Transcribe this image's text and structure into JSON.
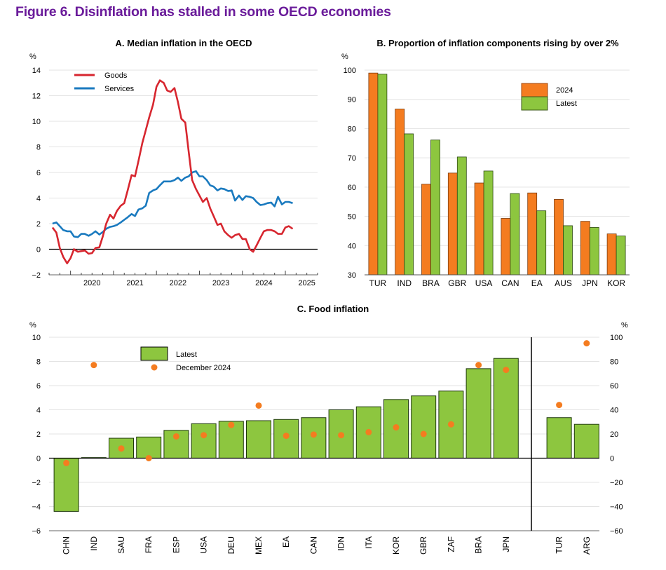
{
  "figure": {
    "title": "Figure 6. Disinflation has stalled in some OECD economies",
    "title_color": "#6a1b9a"
  },
  "chart_data": [
    {
      "id": "A",
      "type": "line",
      "title": "A. Median inflation in the OECD",
      "ylabel": "%",
      "xlabel": "",
      "ylim": [
        -2,
        14
      ],
      "yticks": [
        -2,
        0,
        2,
        4,
        6,
        8,
        10,
        12,
        14
      ],
      "xlim": [
        2019.5,
        2025.75
      ],
      "xticks": [
        "2020",
        "2021",
        "2022",
        "2023",
        "2024",
        "2025"
      ],
      "grid": true,
      "legend": "top-left",
      "series": [
        {
          "name": "Goods",
          "color": "#d7262f",
          "x": [
            2019.58,
            2019.67,
            2019.75,
            2019.83,
            2019.92,
            2020.0,
            2020.08,
            2020.17,
            2020.25,
            2020.33,
            2020.42,
            2020.5,
            2020.58,
            2020.67,
            2020.75,
            2020.83,
            2020.92,
            2021.0,
            2021.08,
            2021.17,
            2021.25,
            2021.33,
            2021.42,
            2021.5,
            2021.58,
            2021.67,
            2021.75,
            2021.83,
            2021.92,
            2022.0,
            2022.08,
            2022.17,
            2022.25,
            2022.33,
            2022.42,
            2022.5,
            2022.58,
            2022.67,
            2022.75,
            2022.83,
            2022.92,
            2023.0,
            2023.08,
            2023.17,
            2023.25,
            2023.33,
            2023.42,
            2023.5,
            2023.58,
            2023.67,
            2023.75,
            2023.83,
            2023.92,
            2024.0,
            2024.08,
            2024.17,
            2024.25,
            2024.33,
            2024.42,
            2024.5,
            2024.58,
            2024.67,
            2024.75,
            2024.83,
            2024.92,
            2025.0,
            2025.08,
            2025.17
          ],
          "y": [
            1.7,
            1.3,
            0.1,
            -0.6,
            -1.1,
            -0.7,
            0.0,
            -0.2,
            -0.15,
            -0.1,
            -0.35,
            -0.3,
            0.1,
            0.15,
            1.0,
            2.0,
            2.7,
            2.4,
            3.0,
            3.4,
            3.6,
            4.6,
            5.8,
            5.7,
            6.9,
            8.3,
            9.3,
            10.3,
            11.3,
            12.7,
            13.2,
            13.0,
            12.4,
            12.3,
            12.6,
            11.5,
            10.2,
            9.9,
            7.6,
            5.4,
            4.7,
            4.2,
            3.7,
            4.0,
            3.2,
            2.6,
            1.9,
            2.0,
            1.4,
            1.1,
            0.9,
            1.1,
            1.2,
            0.8,
            0.8,
            0.0,
            -0.2,
            0.3,
            0.9,
            1.4,
            1.5,
            1.5,
            1.4,
            1.2,
            1.2,
            1.7,
            1.8,
            1.6
          ]
        },
        {
          "name": "Services",
          "color": "#1a7abf",
          "x": [
            2019.58,
            2019.67,
            2019.75,
            2019.83,
            2019.92,
            2020.0,
            2020.08,
            2020.17,
            2020.25,
            2020.33,
            2020.42,
            2020.5,
            2020.58,
            2020.67,
            2020.75,
            2020.83,
            2020.92,
            2021.0,
            2021.08,
            2021.17,
            2021.25,
            2021.33,
            2021.42,
            2021.5,
            2021.58,
            2021.67,
            2021.75,
            2021.83,
            2021.92,
            2022.0,
            2022.08,
            2022.17,
            2022.25,
            2022.33,
            2022.42,
            2022.5,
            2022.58,
            2022.67,
            2022.75,
            2022.83,
            2022.92,
            2023.0,
            2023.08,
            2023.17,
            2023.25,
            2023.33,
            2023.42,
            2023.5,
            2023.58,
            2023.67,
            2023.75,
            2023.83,
            2023.92,
            2024.0,
            2024.08,
            2024.17,
            2024.25,
            2024.33,
            2024.42,
            2024.5,
            2024.58,
            2024.67,
            2024.75,
            2024.83,
            2024.92,
            2025.0,
            2025.08,
            2025.17
          ],
          "y": [
            2.0,
            2.1,
            1.8,
            1.5,
            1.4,
            1.4,
            1.0,
            0.95,
            1.2,
            1.2,
            1.05,
            1.2,
            1.4,
            1.15,
            1.35,
            1.6,
            1.75,
            1.8,
            1.9,
            2.1,
            2.3,
            2.5,
            2.75,
            2.6,
            3.1,
            3.2,
            3.4,
            4.4,
            4.6,
            4.7,
            5.0,
            5.3,
            5.3,
            5.3,
            5.4,
            5.6,
            5.35,
            5.6,
            5.7,
            6.0,
            6.1,
            5.7,
            5.7,
            5.4,
            5.0,
            4.9,
            4.6,
            4.75,
            4.7,
            4.55,
            4.6,
            3.8,
            4.2,
            3.85,
            4.15,
            4.1,
            4.0,
            3.7,
            3.45,
            3.5,
            3.6,
            3.65,
            3.35,
            4.1,
            3.5,
            3.7,
            3.7,
            3.6
          ]
        }
      ]
    },
    {
      "id": "B",
      "type": "bar",
      "title": "B. Proportion of inflation components rising by over 2%",
      "ylabel": "%",
      "xlabel": "",
      "ylim": [
        30,
        100
      ],
      "yticks": [
        30,
        40,
        50,
        60,
        70,
        80,
        90,
        100
      ],
      "grid": true,
      "legend": "top-right",
      "categories": [
        "TUR",
        "IND",
        "BRA",
        "GBR",
        "USA",
        "CAN",
        "EA",
        "AUS",
        "JPN",
        "KOR"
      ],
      "series": [
        {
          "name": "2024",
          "color": "#f47c20",
          "values": [
            99,
            86.7,
            61,
            64.8,
            61.4,
            49.3,
            58,
            55.8,
            48.3,
            44
          ]
        },
        {
          "name": "Latest",
          "color": "#8dc63f",
          "values": [
            98.6,
            78.2,
            76.1,
            70.3,
            65.5,
            57.8,
            51.9,
            46.8,
            46.2,
            43.3
          ]
        }
      ]
    },
    {
      "id": "C",
      "type": "bar",
      "title": "C. Food inflation",
      "ylabel": "%",
      "ylabel_right": "%",
      "xlabel": "",
      "ylim": [
        -6,
        10
      ],
      "yticks": [
        -6,
        -4,
        -2,
        0,
        2,
        4,
        6,
        8,
        10
      ],
      "ylim_right": [
        -60,
        100
      ],
      "yticks_right": [
        -60,
        -40,
        -20,
        0,
        20,
        40,
        60,
        80,
        100
      ],
      "grid": true,
      "legend": "top-left",
      "categories_left_axis": [
        "CHN",
        "IND",
        "SAU",
        "FRA",
        "ESP",
        "USA",
        "DEU",
        "MEX",
        "EA",
        "CAN",
        "IDN",
        "ITA",
        "KOR",
        "GBR",
        "ZAF",
        "BRA",
        "JPN"
      ],
      "categories_right_axis": [
        "TUR",
        "ARG"
      ],
      "series": [
        {
          "name": "Latest",
          "color": "#8dc63f",
          "marker": "bar",
          "left_values": [
            -4.4,
            0.05,
            1.65,
            1.75,
            2.3,
            2.85,
            3.05,
            3.1,
            3.2,
            3.35,
            4.0,
            4.25,
            4.85,
            5.15,
            5.55,
            7.4,
            8.25
          ],
          "right_values": [
            33.5,
            28
          ]
        },
        {
          "name": "December 2024",
          "color": "#f47c20",
          "marker": "dot",
          "left_values": [
            -0.4,
            7.7,
            0.8,
            0.0,
            1.8,
            1.9,
            2.75,
            4.35,
            1.85,
            1.95,
            1.9,
            2.15,
            2.55,
            2.0,
            2.8,
            7.7,
            7.3
          ],
          "right_values": [
            44,
            95
          ]
        }
      ]
    }
  ]
}
